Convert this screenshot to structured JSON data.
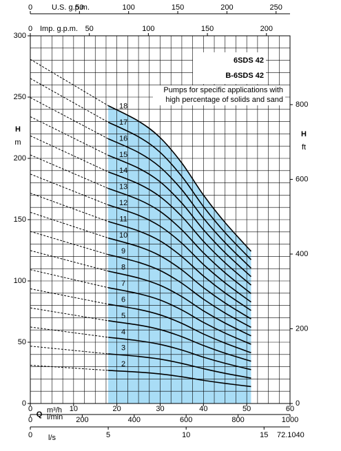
{
  "chart_data": {
    "type": "line",
    "title": [
      "6SDS 42",
      "B-6SDS 42"
    ],
    "subtitle": [
      "Pumps for specific applications with",
      "high percentage of solids and sand"
    ],
    "code": "72.1040",
    "xlabel": "Q",
    "xunit": "m³/h",
    "xlim": [
      0,
      60
    ],
    "xticks": [
      0,
      10,
      20,
      30,
      40,
      50,
      60
    ],
    "xgrid": [
      0,
      2.5,
      5,
      7.5,
      10,
      12.5,
      15,
      17.5,
      20,
      22.5,
      25,
      27.5,
      30,
      32.5,
      35,
      37.5,
      40,
      42.5,
      45,
      47.5,
      50,
      52.5,
      55,
      57.5,
      60
    ],
    "ylabel": "H",
    "yunit": "m",
    "ylim": [
      0,
      300
    ],
    "yticks": [
      0,
      50,
      100,
      150,
      200,
      250,
      300
    ],
    "ygrid": [
      0,
      10,
      20,
      30,
      40,
      50,
      60,
      70,
      80,
      90,
      100,
      110,
      120,
      130,
      140,
      150,
      160,
      170,
      180,
      190,
      200,
      210,
      220,
      230,
      240,
      250,
      260,
      270,
      280,
      290,
      300
    ],
    "y2label": "H",
    "y2unit": "ft",
    "y2lim": [
      0,
      984.25
    ],
    "y2ticks": [
      0,
      200,
      400,
      600,
      800
    ],
    "secondary_x": [
      {
        "label": "U.S. g.p.m.",
        "position": "top",
        "lim": [
          0,
          264.2
        ],
        "ticks": [
          0,
          50,
          100,
          150,
          200,
          250
        ]
      },
      {
        "label": "Imp. g.p.m.",
        "position": "top",
        "lim": [
          0,
          219.98
        ],
        "ticks": [
          0,
          50,
          100,
          150,
          200
        ]
      },
      {
        "label": "l/min",
        "position": "bottom",
        "lim": [
          0,
          1000
        ],
        "ticks": [
          0,
          200,
          400,
          600,
          800,
          1000
        ]
      },
      {
        "label": "l/s",
        "position": "bottom",
        "lim": [
          0,
          16.667
        ],
        "ticks": [
          0,
          5,
          10,
          15
        ]
      }
    ],
    "color": "#000000",
    "fill": "#a9ddf6",
    "x": [
      18,
      25,
      30,
      35,
      40,
      45,
      51
    ],
    "series": [
      {
        "name": "2",
        "shutoff": 31.2,
        "values": [
          27,
          25.6,
          24.1,
          21.8,
          18.9,
          16.4,
          13.8
        ]
      },
      {
        "name": "3",
        "shutoff": 46.8,
        "values": [
          40.5,
          38.4,
          36.2,
          32.7,
          28.4,
          24.6,
          20.7
        ]
      },
      {
        "name": "4",
        "shutoff": 62.4,
        "values": [
          54,
          51.2,
          48.2,
          43.6,
          37.8,
          32.8,
          27.6
        ]
      },
      {
        "name": "5",
        "shutoff": 78,
        "values": [
          67.5,
          64,
          60.3,
          54.5,
          47.3,
          41,
          34.5
        ]
      },
      {
        "name": "6",
        "shutoff": 93.6,
        "values": [
          81,
          76.8,
          72.3,
          65.4,
          56.7,
          49.2,
          41.4
        ]
      },
      {
        "name": "7",
        "shutoff": 109.2,
        "values": [
          94.5,
          89.6,
          84.4,
          76.3,
          66.2,
          57.4,
          48.3
        ]
      },
      {
        "name": "8",
        "shutoff": 124.8,
        "values": [
          108,
          102.4,
          96.4,
          87.2,
          75.6,
          65.6,
          55.2
        ]
      },
      {
        "name": "9",
        "shutoff": 140.4,
        "values": [
          121.5,
          115.2,
          108.5,
          98.1,
          85.1,
          73.8,
          62.1
        ]
      },
      {
        "name": "10",
        "shutoff": 156,
        "values": [
          135,
          128,
          120.5,
          109,
          94.5,
          82,
          69
        ]
      },
      {
        "name": "11",
        "shutoff": 171.6,
        "values": [
          148.5,
          140.8,
          132.6,
          119.9,
          104,
          90.2,
          75.9
        ]
      },
      {
        "name": "12",
        "shutoff": 187.2,
        "values": [
          162,
          153.6,
          144.6,
          130.8,
          113.4,
          98.4,
          82.8
        ]
      },
      {
        "name": "13",
        "shutoff": 202.8,
        "values": [
          175.5,
          166.4,
          156.7,
          141.7,
          122.9,
          106.6,
          89.7
        ]
      },
      {
        "name": "14",
        "shutoff": 218.4,
        "values": [
          189,
          179.2,
          168.7,
          152.6,
          132.3,
          114.8,
          96.6
        ]
      },
      {
        "name": "15",
        "shutoff": 234,
        "values": [
          202.5,
          192,
          180.8,
          163.5,
          141.8,
          123,
          103.5
        ]
      },
      {
        "name": "16",
        "shutoff": 249.6,
        "values": [
          216,
          204.8,
          192.8,
          174.4,
          151.2,
          131.2,
          110.4
        ]
      },
      {
        "name": "17",
        "shutoff": 265.2,
        "values": [
          229.5,
          217.6,
          204.9,
          185.3,
          160.7,
          139.4,
          117.3
        ]
      },
      {
        "name": "18",
        "shutoff": 280.8,
        "values": [
          243,
          230.4,
          216.9,
          196.2,
          170.1,
          147.6,
          124.2
        ]
      }
    ]
  }
}
